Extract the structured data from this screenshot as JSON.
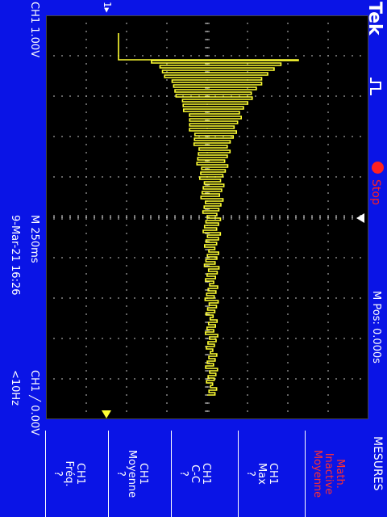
{
  "brand": "Tek",
  "acquisition": {
    "state": "Stop",
    "state_color": "#ff2020",
    "trigger_icon": "trigger-pulse-icon"
  },
  "position": {
    "label": "M Pos: 0.000s"
  },
  "channel_marker": "1",
  "status": {
    "ch1_scale": "CH1  1.00V",
    "timebase": "M 250ms",
    "datetime": "9-Mar-21 16:26",
    "trigger": "CH1",
    "trigger_level": "0.00V",
    "freq": "<10Hz"
  },
  "menu": {
    "title": "MESURES",
    "items": [
      {
        "lines": [
          "Math.",
          "Inactive",
          "Moyenne"
        ],
        "color": "#ff3030"
      },
      {
        "lines": [
          "CH1",
          "Max",
          "?"
        ],
        "color": "#ffffff"
      },
      {
        "lines": [
          "CH1",
          "C-C",
          "?"
        ],
        "color": "#ffffff"
      },
      {
        "lines": [
          "CH1",
          "Moyenne",
          "?"
        ],
        "color": "#ffffff"
      },
      {
        "lines": [
          "CH1",
          "Fréq.",
          "?"
        ],
        "color": "#ffffff"
      }
    ]
  },
  "colors": {
    "background": "#0a14e6",
    "screen": "#000000",
    "trace": "#ffff33",
    "grid": "#9a9a9a"
  }
}
